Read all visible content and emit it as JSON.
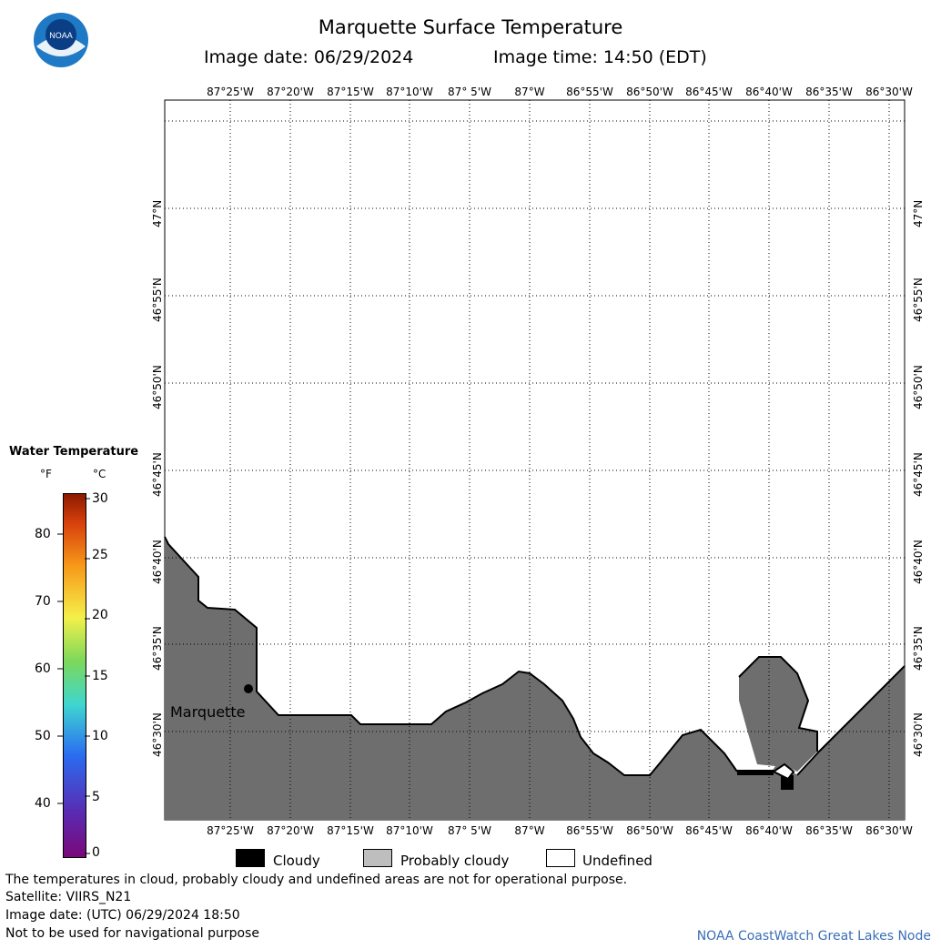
{
  "header": {
    "title": "Marquette Surface Temperature",
    "image_date_label": "Image date: 06/29/2024",
    "image_time_label": "Image time: 14:50 (EDT)",
    "logo_text": "NOAA"
  },
  "map": {
    "longitudes": [
      "87°25'W",
      "87°20'W",
      "87°15'W",
      "87°10'W",
      "87° 5'W",
      "87°W",
      "86°55'W",
      "86°50'W",
      "86°45'W",
      "86°40'W",
      "86°35'W",
      "86°30'W"
    ],
    "latitudes": [
      "47°N",
      "46°55'N",
      "46°50'N",
      "46°45'N",
      "46°40'N",
      "46°35'N",
      "46°30'N"
    ],
    "city_label": "Marquette",
    "colors": {
      "land": "#6e6e6e",
      "water": "#ffffff",
      "coast": "#000000",
      "grid": "#000000"
    }
  },
  "colorbar": {
    "title": "Water Temperature",
    "unit_f": "°F",
    "unit_c": "°C",
    "fahrenheit_ticks": [
      "80",
      "70",
      "60",
      "50",
      "40"
    ],
    "celsius_ticks": [
      "30",
      "25",
      "20",
      "15",
      "10",
      "5",
      "0"
    ]
  },
  "legend": {
    "cloudy": "Cloudy",
    "probably_cloudy": "Probably cloudy",
    "undefined": "Undefined",
    "colors": {
      "cloudy": "#000000",
      "probably_cloudy": "#bebebe",
      "undefined": "#ffffff"
    }
  },
  "footer": {
    "note": "The temperatures in cloud, probably cloudy and undefined areas are not for operational purpose.",
    "satellite": "Satellite: VIIRS_N21",
    "utc_date": "Image date: (UTC) 06/29/2024  18:50",
    "nav_warning": "Not to be used for navigational purpose",
    "credit": "NOAA CoastWatch Great Lakes Node"
  }
}
